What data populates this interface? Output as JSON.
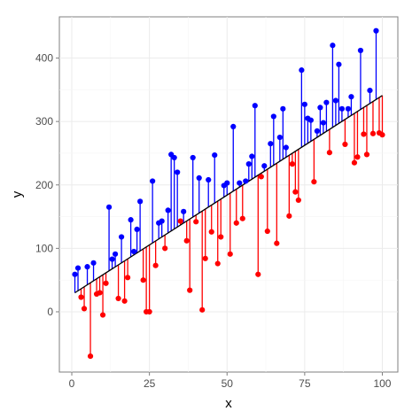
{
  "chart_data": {
    "type": "scatter",
    "title": "",
    "xlabel": "x",
    "ylabel": "y",
    "xlim": [
      -4,
      105
    ],
    "ylim": [
      -95,
      465
    ],
    "x_ticks": [
      0,
      25,
      50,
      75,
      100
    ],
    "y_ticks": [
      0,
      100,
      200,
      300,
      400
    ],
    "x_tick_labels": [
      "0",
      "25",
      "50",
      "75",
      "100"
    ],
    "y_tick_labels": [
      "0",
      "100",
      "200",
      "300",
      "400"
    ],
    "grid": true,
    "legend": "none",
    "fit_line": {
      "x": [
        1,
        100
      ],
      "y": [
        30,
        341
      ]
    },
    "residual_segments": true,
    "series": [
      {
        "color": "#0000ff",
        "points": [
          {
            "x": 1,
            "y": 59
          },
          {
            "x": 2,
            "y": 69
          },
          {
            "x": 5,
            "y": 71
          },
          {
            "x": 7,
            "y": 77
          },
          {
            "x": 12,
            "y": 165
          },
          {
            "x": 13,
            "y": 83
          },
          {
            "x": 14,
            "y": 91
          },
          {
            "x": 16,
            "y": 118
          },
          {
            "x": 19,
            "y": 145
          },
          {
            "x": 20,
            "y": 95
          },
          {
            "x": 21,
            "y": 130
          },
          {
            "x": 22,
            "y": 174
          },
          {
            "x": 26,
            "y": 206
          },
          {
            "x": 28,
            "y": 140
          },
          {
            "x": 29,
            "y": 143
          },
          {
            "x": 31,
            "y": 160
          },
          {
            "x": 32,
            "y": 248
          },
          {
            "x": 33,
            "y": 243
          },
          {
            "x": 34,
            "y": 220
          },
          {
            "x": 36,
            "y": 158
          },
          {
            "x": 39,
            "y": 243
          },
          {
            "x": 41,
            "y": 211
          },
          {
            "x": 44,
            "y": 208
          },
          {
            "x": 46,
            "y": 247
          },
          {
            "x": 49,
            "y": 199
          },
          {
            "x": 50,
            "y": 203
          },
          {
            "x": 52,
            "y": 292
          },
          {
            "x": 54,
            "y": 203
          },
          {
            "x": 56,
            "y": 206
          },
          {
            "x": 57,
            "y": 233
          },
          {
            "x": 58,
            "y": 245
          },
          {
            "x": 59,
            "y": 325
          },
          {
            "x": 62,
            "y": 230
          },
          {
            "x": 64,
            "y": 265
          },
          {
            "x": 65,
            "y": 308
          },
          {
            "x": 67,
            "y": 275
          },
          {
            "x": 68,
            "y": 320
          },
          {
            "x": 69,
            "y": 259
          },
          {
            "x": 74,
            "y": 381
          },
          {
            "x": 75,
            "y": 327
          },
          {
            "x": 76,
            "y": 305
          },
          {
            "x": 77,
            "y": 302
          },
          {
            "x": 79,
            "y": 285
          },
          {
            "x": 80,
            "y": 322
          },
          {
            "x": 81,
            "y": 298
          },
          {
            "x": 82,
            "y": 330
          },
          {
            "x": 84,
            "y": 420
          },
          {
            "x": 85,
            "y": 333
          },
          {
            "x": 86,
            "y": 390
          },
          {
            "x": 87,
            "y": 320
          },
          {
            "x": 89,
            "y": 320
          },
          {
            "x": 90,
            "y": 339
          },
          {
            "x": 93,
            "y": 412
          },
          {
            "x": 96,
            "y": 349
          },
          {
            "x": 98,
            "y": 443
          }
        ]
      },
      {
        "color": "#ff0000",
        "points": [
          {
            "x": 3,
            "y": 23
          },
          {
            "x": 4,
            "y": 5
          },
          {
            "x": 6,
            "y": -70
          },
          {
            "x": 8,
            "y": 28
          },
          {
            "x": 9,
            "y": 30
          },
          {
            "x": 10,
            "y": -5
          },
          {
            "x": 11,
            "y": 45
          },
          {
            "x": 15,
            "y": 21
          },
          {
            "x": 17,
            "y": 17
          },
          {
            "x": 18,
            "y": 54
          },
          {
            "x": 23,
            "y": 50
          },
          {
            "x": 24,
            "y": 0
          },
          {
            "x": 25,
            "y": 0
          },
          {
            "x": 27,
            "y": 73
          },
          {
            "x": 30,
            "y": 100
          },
          {
            "x": 35,
            "y": 143
          },
          {
            "x": 37,
            "y": 112
          },
          {
            "x": 38,
            "y": 34
          },
          {
            "x": 40,
            "y": 142
          },
          {
            "x": 42,
            "y": 3
          },
          {
            "x": 43,
            "y": 84
          },
          {
            "x": 45,
            "y": 126
          },
          {
            "x": 47,
            "y": 76
          },
          {
            "x": 48,
            "y": 118
          },
          {
            "x": 51,
            "y": 91
          },
          {
            "x": 53,
            "y": 140
          },
          {
            "x": 55,
            "y": 147
          },
          {
            "x": 60,
            "y": 59
          },
          {
            "x": 61,
            "y": 213
          },
          {
            "x": 63,
            "y": 127
          },
          {
            "x": 66,
            "y": 108
          },
          {
            "x": 70,
            "y": 151
          },
          {
            "x": 71,
            "y": 233
          },
          {
            "x": 72,
            "y": 189
          },
          {
            "x": 73,
            "y": 176
          },
          {
            "x": 78,
            "y": 205
          },
          {
            "x": 83,
            "y": 251
          },
          {
            "x": 88,
            "y": 264
          },
          {
            "x": 91,
            "y": 235
          },
          {
            "x": 92,
            "y": 244
          },
          {
            "x": 94,
            "y": 280
          },
          {
            "x": 95,
            "y": 248
          },
          {
            "x": 97,
            "y": 281
          },
          {
            "x": 99,
            "y": 282
          },
          {
            "x": 100,
            "y": 279
          }
        ]
      }
    ]
  }
}
